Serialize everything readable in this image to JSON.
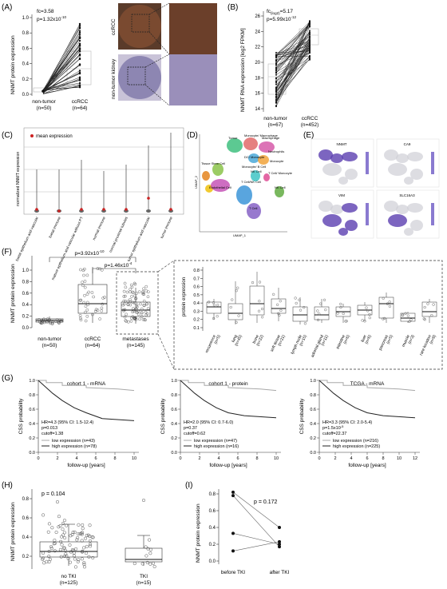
{
  "panels": {
    "A": {
      "label": "(A)",
      "ylabel": "NNMT protein expression",
      "stat1": "fc=3.58",
      "stat2": "p=1.32x10",
      "stat2_exp": "-10",
      "ticks": [
        "0.0",
        "0.2",
        "0.4",
        "0.6",
        "0.8",
        "1.0"
      ],
      "groups": [
        {
          "name": "non-tumor",
          "n": "(n=50)"
        },
        {
          "name": "ccRCC",
          "n": "(n=64)"
        }
      ],
      "image_labels": [
        "ccRCC",
        "non-tumor kidney"
      ]
    },
    "B": {
      "label": "(B)",
      "ylabel": "NNMT RNA expression [log2 FPKM]",
      "stat1_main": "fc",
      "stat1_sub": "(log2)",
      "stat1_val": "=5.17",
      "stat2": "p=5.99x10",
      "stat2_exp": "-12",
      "ticks": [
        "14",
        "16",
        "18",
        "20",
        "22",
        "24",
        "26"
      ],
      "groups": [
        {
          "name": "non-tumor",
          "n": "(n=67)"
        },
        {
          "name": "ccRCC",
          "n": "(n=452)"
        }
      ]
    },
    "C": {
      "label": "(C)",
      "legend": "mean expression",
      "ylabel": "normalized NNMT expression",
      "categories": [
        "foetal epithelium and vascular",
        "foetal immune",
        "mature epithelium and vascular without PT",
        "normal immune",
        "normal proximal tubules",
        "tumor epithelium and vascular",
        "tumor immune"
      ]
    },
    "D": {
      "label": "(D)",
      "clusters": [
        "Macrophage",
        "Monocyte/ Macrophage",
        "Neutrophils",
        "Tumor",
        "DC/ Monocyte",
        "Monocyte",
        "Tissue Stem Cell",
        "Monocyte/ B Cell",
        "NK Cell",
        "T Cell/ Monocyte",
        "Endothelial Cell",
        "T Cell/NK Cell",
        "NK Cell",
        "T Cell"
      ],
      "xlabel": "UMAP_1",
      "ylabel": "UMAP_2"
    },
    "E": {
      "label": "(E)",
      "genes": [
        "NNMT",
        "CA9",
        "VIM",
        "SLC16A3"
      ]
    },
    "F": {
      "label": "(F)",
      "ylabel": "NNMT protein expression",
      "ticks": [
        "0.0",
        "0.2",
        "0.4",
        "0.6",
        "0.8",
        "1.0"
      ],
      "p_top": "p=3.92x10",
      "p_top_exp": "-10",
      "p_mid": "p=1.46x10",
      "p_mid_exp": "-4",
      "groups": [
        {
          "name": "non-tumor",
          "n": "(n=50)"
        },
        {
          "name": "ccRCC",
          "n": "(n=64)"
        },
        {
          "name": "metastases",
          "n": "(n=145)"
        }
      ],
      "inset_ylabel": "protein expression",
      "inset_ticks": [
        "0.1",
        "0.2",
        "0.3",
        "0.4",
        "0.5",
        "0.6",
        "0.7",
        "0.8"
      ],
      "sites": [
        {
          "name": "recurrence",
          "n": "(n=5)"
        },
        {
          "name": "lung",
          "n": "(n=45)"
        },
        {
          "name": "bone",
          "n": "(n=22)"
        },
        {
          "name": "soft tissue",
          "n": "(n=21)"
        },
        {
          "name": "lymph node",
          "n": "(n=15)"
        },
        {
          "name": "adrenal gland",
          "n": "(n=11)"
        },
        {
          "name": "intestine",
          "n": "(n=6)"
        },
        {
          "name": "liver",
          "n": "(n=6)"
        },
        {
          "name": "pancreas",
          "n": "(n=5)"
        },
        {
          "name": "muscle",
          "n": "(n=3)"
        },
        {
          "name": "rare location",
          "n": "(n=8)"
        }
      ]
    },
    "G": {
      "label": "(G)",
      "ylabel": "CSS probability",
      "xlabel": "follow-up [years]",
      "yticks": [
        "0.0",
        "0.2",
        "0.4",
        "0.6",
        "0.8",
        "1.0"
      ],
      "plots": [
        {
          "title": "cohort 1 - mRNA",
          "hr": "HR=4.3 (95% CI: 1.5-12.4)",
          "p": "p=0.013",
          "cutoff": "cutoff=1.38",
          "low": "low expression (n=43)",
          "high": "high expression (n=78)",
          "xticks": [
            "0",
            "2",
            "4",
            "6",
            "8",
            "10"
          ]
        },
        {
          "title": "cohort 1 - protein",
          "hr": "HR=2.0 (95% CI: 0.7-6.0)",
          "p": "p=0.37",
          "cutoff": "cutoff=0.62",
          "low": "low expression (n=47)",
          "high": "high expression (n=16)",
          "xticks": [
            "0",
            "2",
            "4",
            "6",
            "8",
            "10"
          ]
        },
        {
          "title": "TCGA - mRNA",
          "hr": "HR=3.3 (95% CI: 2.0-5.4)",
          "p": "p=1.5x10",
          "p_exp": "-5",
          "cutoff": "cutoff=22.37",
          "low": "low expression (n=216)",
          "high": "high expression (n=225)",
          "xticks": [
            "0",
            "2",
            "4",
            "6",
            "8",
            "10",
            "12"
          ]
        }
      ]
    },
    "H": {
      "label": "(H)",
      "ylabel": "NNMT protein expression",
      "p": "p = 0.104",
      "ticks": [
        "0.2",
        "0.4",
        "0.6",
        "0.8"
      ],
      "groups": [
        {
          "name": "no TKI",
          "n": "(n=125)"
        },
        {
          "name": "TKI",
          "n": "(n=15)"
        }
      ]
    },
    "I": {
      "label": "(I)",
      "ylabel": "NNMT protein expression",
      "p": "p = 0.172",
      "ticks": [
        "0.0",
        "0.2",
        "0.4",
        "0.6",
        "0.8"
      ],
      "groups": [
        "before TKI",
        "after TKI"
      ],
      "pairs": [
        [
          0.82,
          0.4
        ],
        [
          0.78,
          0.17
        ],
        [
          0.33,
          0.2
        ],
        [
          0.12,
          0.23
        ]
      ]
    }
  },
  "colors": {
    "mean_marker": "#cc2222",
    "high_line": "#222222",
    "low_line": "#a8a8a8",
    "umap_feature": "#5b3fb0"
  }
}
